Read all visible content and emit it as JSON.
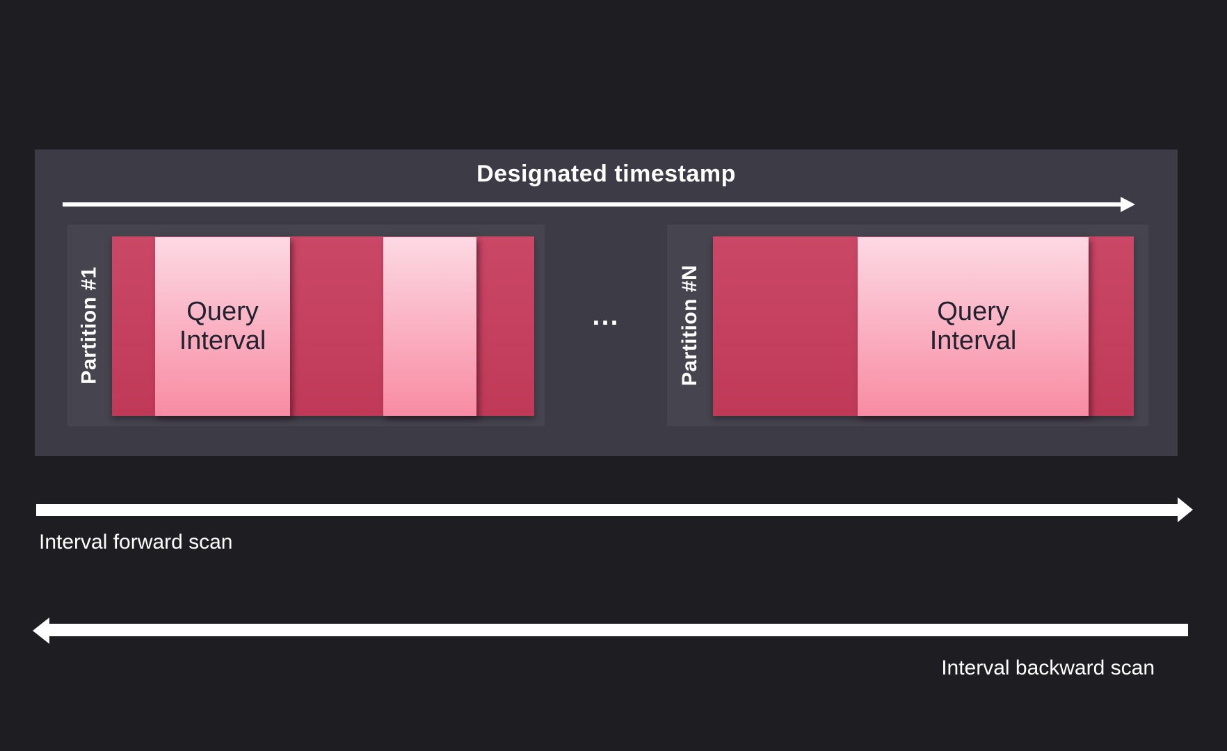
{
  "diagram": {
    "title": "Designated timestamp",
    "ellipsis": "...",
    "partitions": [
      {
        "label": "Partition #1",
        "intervals": [
          {
            "label": "Query\nInterval"
          },
          {
            "label": ""
          }
        ]
      },
      {
        "label": "Partition #N",
        "intervals": [
          {
            "label": "Query\nInterval"
          }
        ]
      }
    ],
    "scans": [
      {
        "label": "Interval forward scan",
        "direction": "forward"
      },
      {
        "label": "Interval backward scan",
        "direction": "backward"
      }
    ],
    "colors": {
      "background": "#1d1d22",
      "panel": "#3d3c46",
      "partition_panel": "#46454f",
      "crimson": "#c64462",
      "pink_light": "#fcd9e3",
      "pink_deep": "#f88ba3",
      "text_light": "#ffffff",
      "text_dark": "#22222e"
    }
  }
}
